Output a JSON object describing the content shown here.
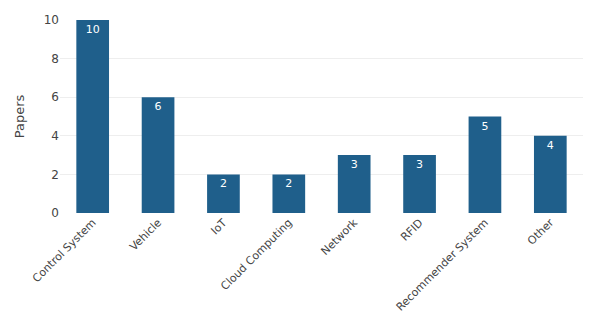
{
  "chart_data": {
    "type": "bar",
    "ylabel": "Papers",
    "categories": [
      "Control System",
      "Vehicle",
      "IoT",
      "Cloud Computing",
      "Network",
      "RFID",
      "Recommender System",
      "Other"
    ],
    "values": [
      10,
      6,
      2,
      2,
      3,
      3,
      5,
      4
    ],
    "color": "#1F5F8B",
    "ylim": [
      0,
      10
    ],
    "yticks": [
      0,
      2,
      4,
      6,
      8,
      10
    ],
    "grid": true,
    "data_labels": true
  }
}
